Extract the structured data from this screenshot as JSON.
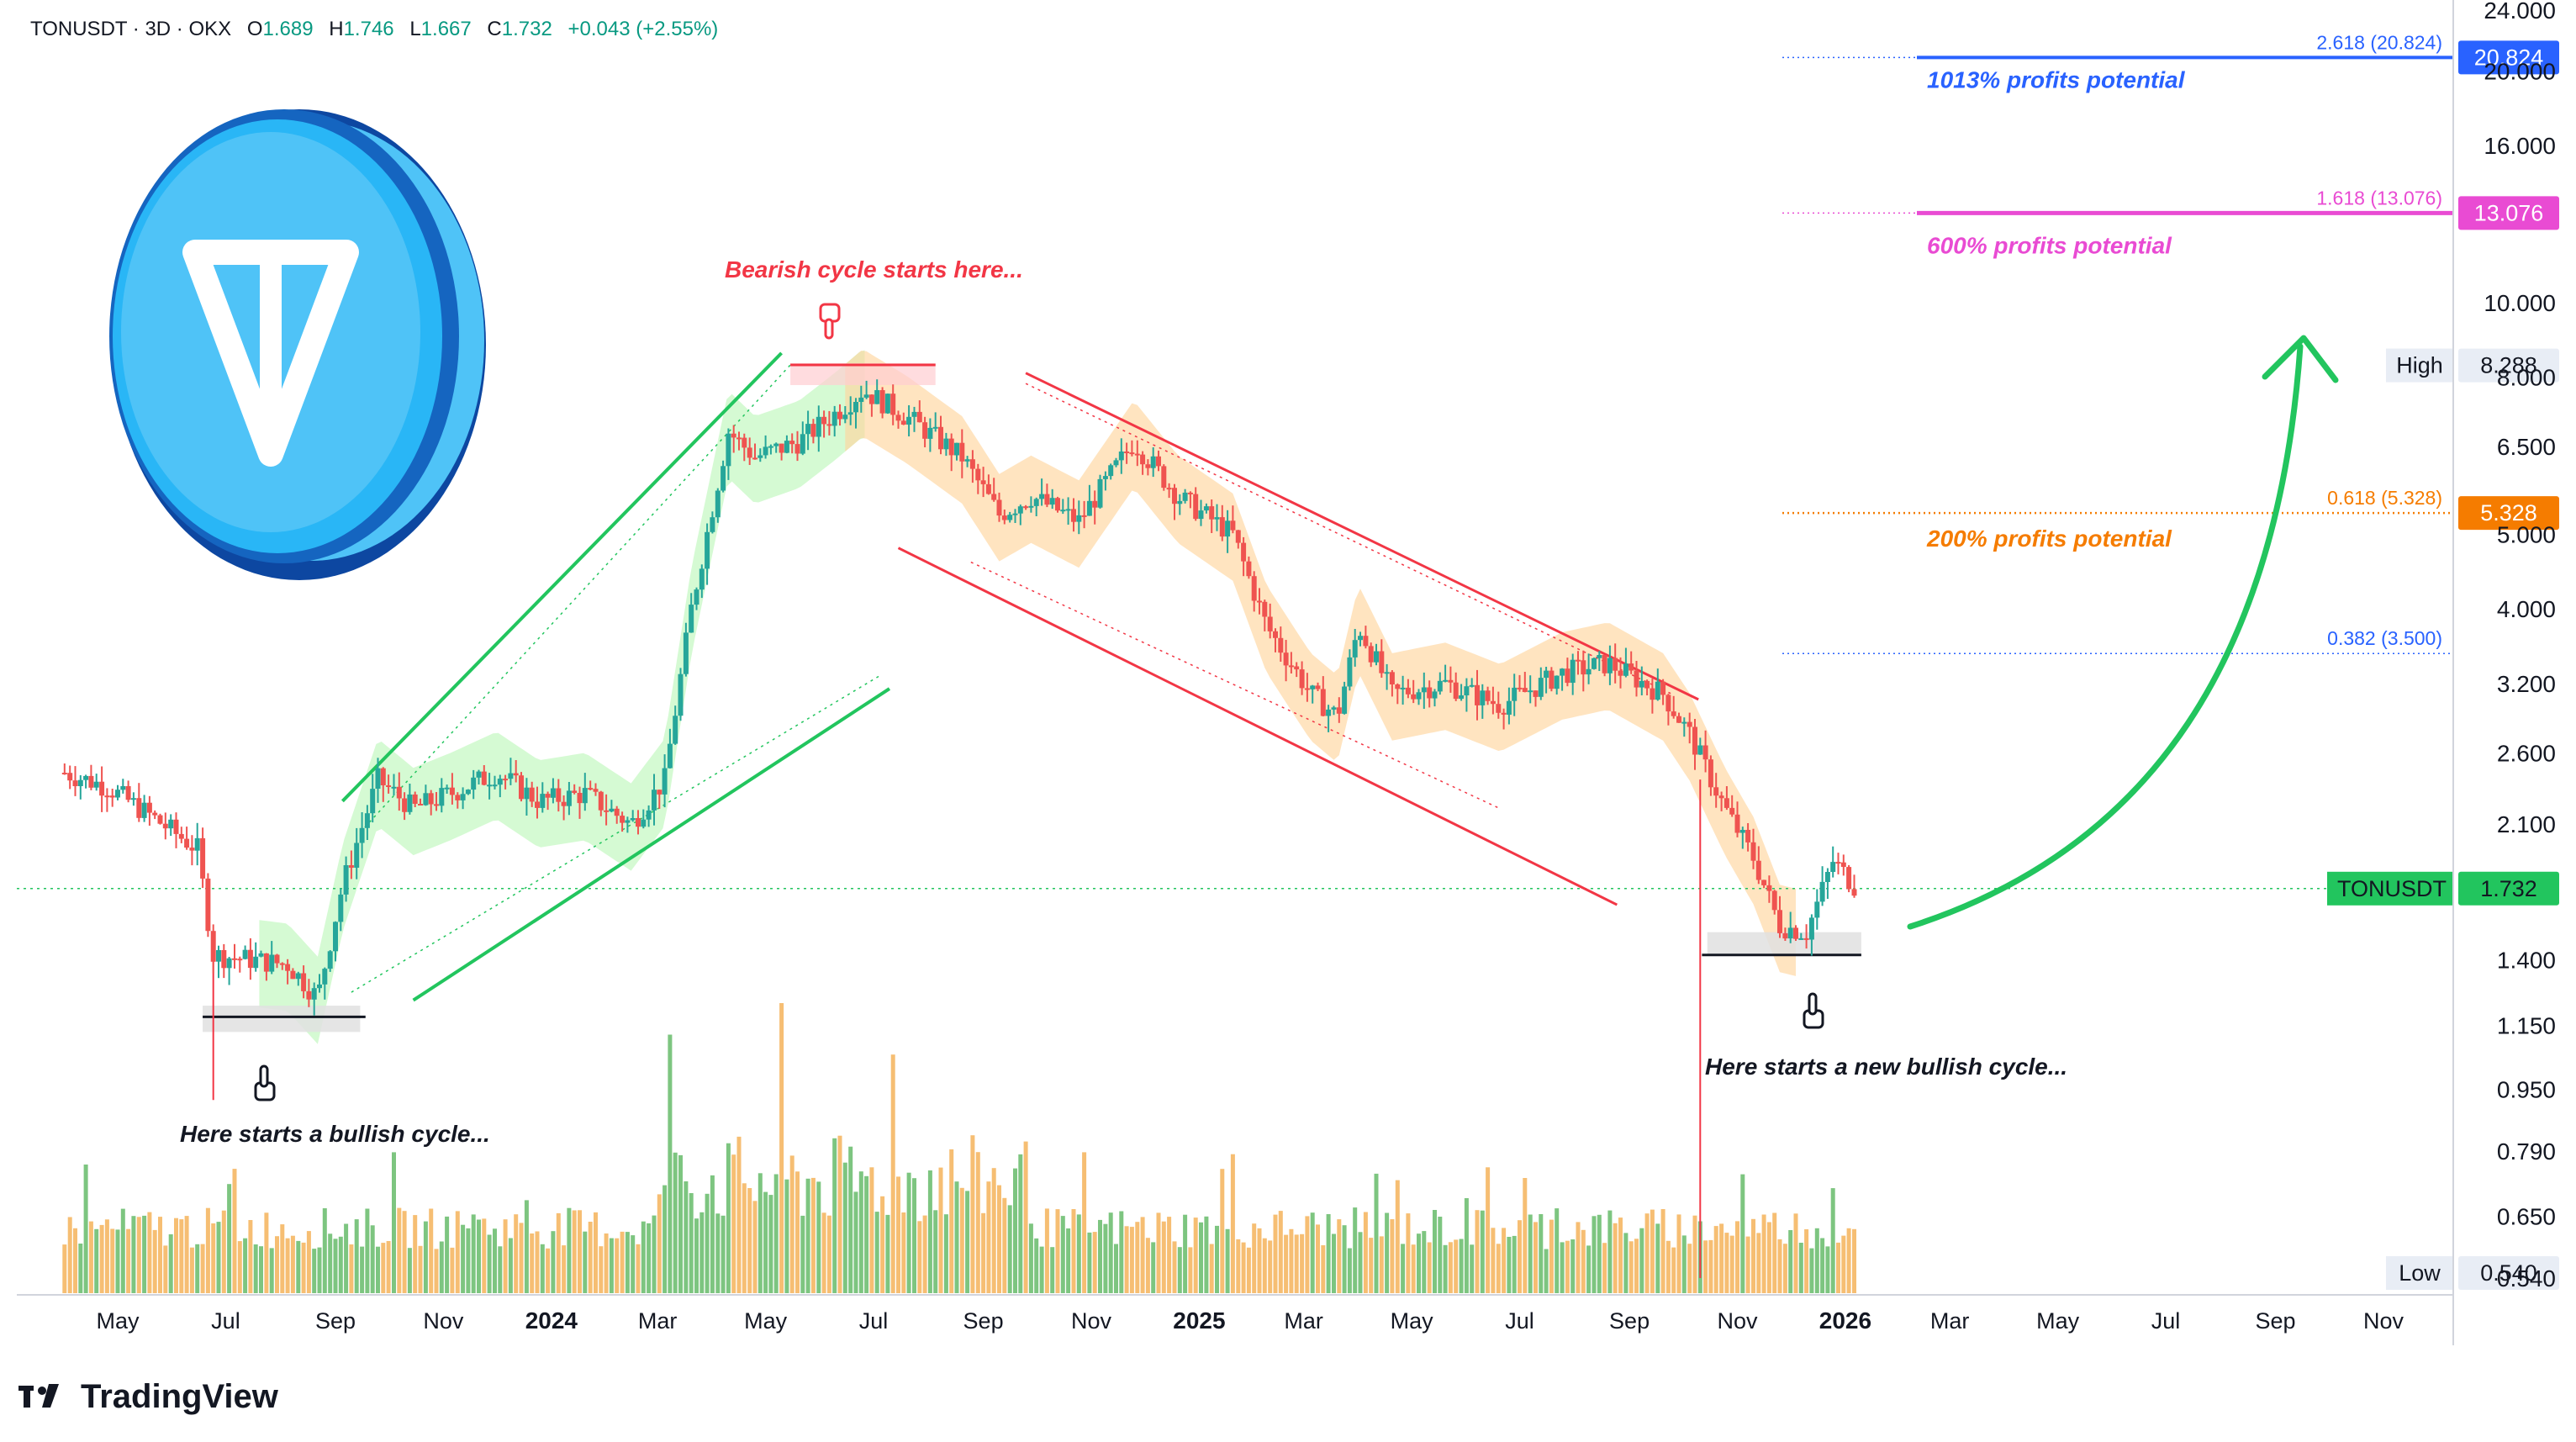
{
  "header": {
    "symbol": "TONUSDT · 3D · OKX",
    "open_label": "O",
    "open": "1.689",
    "high_label": "H",
    "high": "1.746",
    "low_label": "L",
    "low": "1.667",
    "close_label": "C",
    "close": "1.732",
    "change": "+0.043 (+2.55%)"
  },
  "brand": {
    "name": "TradingView",
    "logo_icon": "tradingview-logo-icon"
  },
  "coin_logo": {
    "icon": "toncoin-logo-icon",
    "color": "#29b6f6"
  },
  "chart_data": {
    "type": "candlestick",
    "y_scale": "log",
    "ylim": [
      0.54,
      24.0
    ],
    "y_ticks": [
      "24.000",
      "20.000",
      "16.000",
      "10.000",
      "8.000",
      "6.500",
      "5.000",
      "4.000",
      "3.200",
      "2.600",
      "2.100",
      "1.400",
      "1.150",
      "0.950",
      "0.790",
      "0.650",
      "0.540"
    ],
    "y_tick_values": [
      24.0,
      20.0,
      16.0,
      10.0,
      8.0,
      6.5,
      5.0,
      4.0,
      3.2,
      2.6,
      2.1,
      1.4,
      1.15,
      0.95,
      0.79,
      0.65,
      0.54
    ],
    "x_ticks": [
      {
        "label": "May",
        "date": "2023-05-01",
        "bold": false
      },
      {
        "label": "Jul",
        "date": "2023-07-01",
        "bold": false
      },
      {
        "label": "Sep",
        "date": "2023-09-01",
        "bold": false
      },
      {
        "label": "Nov",
        "date": "2023-11-01",
        "bold": false
      },
      {
        "label": "2024",
        "date": "2024-01-01",
        "bold": true
      },
      {
        "label": "Mar",
        "date": "2024-03-01",
        "bold": false
      },
      {
        "label": "May",
        "date": "2024-05-01",
        "bold": false
      },
      {
        "label": "Jul",
        "date": "2024-07-01",
        "bold": false
      },
      {
        "label": "Sep",
        "date": "2024-09-01",
        "bold": false
      },
      {
        "label": "Nov",
        "date": "2024-11-01",
        "bold": false
      },
      {
        "label": "2025",
        "date": "2025-01-01",
        "bold": true
      },
      {
        "label": "Mar",
        "date": "2025-03-01",
        "bold": false
      },
      {
        "label": "May",
        "date": "2025-05-01",
        "bold": false
      },
      {
        "label": "Jul",
        "date": "2025-07-01",
        "bold": false
      },
      {
        "label": "Sep",
        "date": "2025-09-01",
        "bold": false
      },
      {
        "label": "Nov",
        "date": "2025-11-01",
        "bold": false
      },
      {
        "label": "2026",
        "date": "2026-01-01",
        "bold": true
      },
      {
        "label": "Mar",
        "date": "2026-03-01",
        "bold": false
      },
      {
        "label": "May",
        "date": "2026-05-01",
        "bold": false
      },
      {
        "label": "Jul",
        "date": "2026-07-01",
        "bold": false
      },
      {
        "label": "Sep",
        "date": "2026-09-01",
        "bold": false
      },
      {
        "label": "Nov",
        "date": "2026-11-01",
        "bold": false
      }
    ],
    "price_path": [
      {
        "date": "2023-04-01",
        "close": 2.45
      },
      {
        "date": "2023-04-25",
        "close": 2.35
      },
      {
        "date": "2023-05-20",
        "close": 2.15
      },
      {
        "date": "2023-06-15",
        "close": 1.95
      },
      {
        "date": "2023-06-24",
        "close": 1.42
      },
      {
        "date": "2023-07-15",
        "close": 1.4
      },
      {
        "date": "2023-08-05",
        "close": 1.38
      },
      {
        "date": "2023-08-22",
        "close": 1.25
      },
      {
        "date": "2023-09-05",
        "close": 1.75
      },
      {
        "date": "2023-09-25",
        "close": 2.4
      },
      {
        "date": "2023-10-15",
        "close": 2.2
      },
      {
        "date": "2023-11-05",
        "close": 2.3
      },
      {
        "date": "2023-12-01",
        "close": 2.45
      },
      {
        "date": "2023-12-25",
        "close": 2.25
      },
      {
        "date": "2024-01-20",
        "close": 2.3
      },
      {
        "date": "2024-02-15",
        "close": 2.1
      },
      {
        "date": "2024-03-05",
        "close": 2.4
      },
      {
        "date": "2024-03-20",
        "close": 4.0
      },
      {
        "date": "2024-04-10",
        "close": 6.8
      },
      {
        "date": "2024-04-25",
        "close": 6.3
      },
      {
        "date": "2024-05-20",
        "close": 6.6
      },
      {
        "date": "2024-06-10",
        "close": 7.2
      },
      {
        "date": "2024-06-25",
        "close": 7.7
      },
      {
        "date": "2024-07-20",
        "close": 7.1
      },
      {
        "date": "2024-08-20",
        "close": 6.3
      },
      {
        "date": "2024-09-10",
        "close": 5.3
      },
      {
        "date": "2024-09-28",
        "close": 5.6
      },
      {
        "date": "2024-10-25",
        "close": 5.2
      },
      {
        "date": "2024-11-25",
        "close": 6.6
      },
      {
        "date": "2024-12-20",
        "close": 5.6
      },
      {
        "date": "2025-01-20",
        "close": 5.0
      },
      {
        "date": "2025-02-08",
        "close": 3.8
      },
      {
        "date": "2025-03-05",
        "close": 3.1
      },
      {
        "date": "2025-03-20",
        "close": 2.9
      },
      {
        "date": "2025-04-01",
        "close": 3.8
      },
      {
        "date": "2025-04-20",
        "close": 3.1
      },
      {
        "date": "2025-05-20",
        "close": 3.2
      },
      {
        "date": "2025-06-20",
        "close": 3.0
      },
      {
        "date": "2025-07-25",
        "close": 3.3
      },
      {
        "date": "2025-08-20",
        "close": 3.4
      },
      {
        "date": "2025-09-20",
        "close": 3.1
      },
      {
        "date": "2025-10-05",
        "close": 2.75
      },
      {
        "date": "2025-10-25",
        "close": 2.2
      },
      {
        "date": "2025-11-10",
        "close": 1.9
      },
      {
        "date": "2025-11-25",
        "close": 1.55
      },
      {
        "date": "2025-12-10",
        "close": 1.52
      },
      {
        "date": "2025-12-25",
        "close": 1.88
      },
      {
        "date": "2026-01-08",
        "close": 1.73
      }
    ],
    "levels": [
      {
        "label": "2.618 (20.824)",
        "value": 20.824,
        "color": "#2962ff"
      },
      {
        "label": "1.618 (13.076)",
        "value": 13.076,
        "color": "#e94bd3"
      },
      {
        "label": "0.618 (5.328)",
        "value": 5.328,
        "color": "#f57c00"
      },
      {
        "label": "0.382 (3.500)",
        "value": 3.5,
        "color": "#2962ff"
      }
    ],
    "price_tags": [
      {
        "label": "",
        "value_text": "20.824",
        "value": 20.824,
        "color": "#2962ff"
      },
      {
        "label": "",
        "value_text": "13.076",
        "value": 13.076,
        "color": "#e94bd3"
      },
      {
        "label": "",
        "value_text": "5.328",
        "value": 5.328,
        "color": "#f57c00"
      },
      {
        "label": "TONUSDT",
        "value_text": "1.732",
        "value": 1.732,
        "color": "#22c55e"
      }
    ],
    "high": {
      "label": "High",
      "value_text": "8.288",
      "value": 8.288
    },
    "low": {
      "label": "Low",
      "value_text": "0.540",
      "value": 0.54
    },
    "annotations": {
      "profit_1013": "1013% profits potential",
      "profit_600": "600% profits potential",
      "profit_200": "200% profits potential",
      "bearish": "Bearish cycle starts here...",
      "bullish_1": "Here starts a bullish cycle...",
      "bullish_2": "Here starts a new bullish cycle..."
    },
    "colors": {
      "up": "#26a69a",
      "down": "#ef5350",
      "bull_band": "#b9f6b5",
      "bear_band": "#ffd59e",
      "up_volume": "#66bb6a",
      "down_volume": "#f4b35a"
    }
  }
}
